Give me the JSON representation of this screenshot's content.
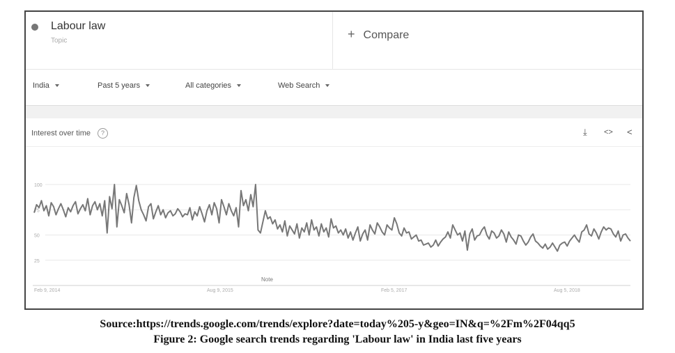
{
  "search_term": {
    "name": "Labour law",
    "type": "Topic",
    "dot_color": "#777777"
  },
  "compare": {
    "label": "Compare",
    "icon": "plus-icon"
  },
  "filters": [
    {
      "label": "India",
      "icon": "caret-down-icon"
    },
    {
      "label": "Past 5 years",
      "icon": "caret-down-icon"
    },
    {
      "label": "All categories",
      "icon": "caret-down-icon"
    },
    {
      "label": "Web Search",
      "icon": "caret-down-icon"
    }
  ],
  "card": {
    "title": "Interest over time",
    "help_icon": "help-icon",
    "help_glyph": "?",
    "actions": [
      {
        "name": "download-icon",
        "glyph": "⤓"
      },
      {
        "name": "embed-icon",
        "glyph": "<>"
      },
      {
        "name": "share-icon",
        "glyph": "<"
      }
    ]
  },
  "chart_data": {
    "type": "line",
    "line_color": "#777777",
    "grid": true,
    "ylim": [
      0,
      100
    ],
    "yticks": [
      "100",
      "75",
      "50",
      "25"
    ],
    "ytick_values": [
      100,
      75,
      50,
      25
    ],
    "xticks": [
      "Feb 9, 2014",
      "Aug 9, 2015",
      "Feb 5, 2017",
      "Aug 5, 2018"
    ],
    "note_label": "Note",
    "x_start": "Feb 9, 2014",
    "x_end": "Feb 3, 2019",
    "series": [
      {
        "values": [
          72,
          80,
          77,
          84,
          74,
          79,
          69,
          82,
          78,
          70,
          76,
          81,
          75,
          68,
          77,
          73,
          79,
          83,
          71,
          76,
          80,
          74,
          86,
          70,
          79,
          83,
          75,
          81,
          69,
          84,
          52,
          88,
          76,
          100,
          58,
          85,
          79,
          72,
          91,
          80,
          62,
          87,
          99,
          84,
          75,
          70,
          64,
          78,
          81,
          66,
          73,
          79,
          70,
          75,
          67,
          72,
          74,
          69,
          71,
          76,
          73,
          68,
          71,
          70,
          77,
          65,
          73,
          69,
          78,
          71,
          63,
          74,
          80,
          70,
          82,
          76,
          62,
          85,
          78,
          70,
          81,
          74,
          69,
          77,
          58,
          94,
          79,
          85,
          74,
          90,
          78,
          100,
          55,
          52,
          63,
          74,
          66,
          68,
          61,
          65,
          56,
          60,
          53,
          64,
          49,
          59,
          55,
          51,
          61,
          47,
          57,
          53,
          62,
          50,
          65,
          55,
          58,
          49,
          61,
          53,
          57,
          48,
          66,
          57,
          59,
          52,
          55,
          50,
          56,
          47,
          53,
          45,
          52,
          58,
          44,
          51,
          55,
          45,
          60,
          55,
          51,
          62,
          58,
          53,
          50,
          60,
          57,
          55,
          67,
          61,
          52,
          49,
          57,
          52,
          53,
          46,
          48,
          50,
          44,
          45,
          40,
          41,
          42,
          38,
          40,
          45,
          39,
          43,
          46,
          48,
          53,
          47,
          60,
          55,
          50,
          52,
          44,
          54,
          35,
          51,
          56,
          45,
          49,
          50,
          55,
          58,
          50,
          46,
          54,
          52,
          47,
          49,
          55,
          51,
          43,
          53,
          48,
          45,
          41,
          50,
          49,
          44,
          40,
          43,
          48,
          51,
          44,
          42,
          39,
          37,
          41,
          36,
          38,
          42,
          38,
          34,
          40,
          42,
          43,
          39,
          44,
          47,
          50,
          46,
          43,
          53,
          55,
          60,
          51,
          49,
          56,
          52,
          46,
          53,
          58,
          55,
          57,
          56,
          51,
          48,
          54,
          44,
          50,
          51,
          47,
          44
        ]
      }
    ]
  },
  "source": "Source:https://trends.google.com/trends/explore?date=today%205-y&geo=IN&q=%2Fm%2F04qq5",
  "caption": "Figure 2: Google search trends regarding 'Labour law' in India last five years"
}
